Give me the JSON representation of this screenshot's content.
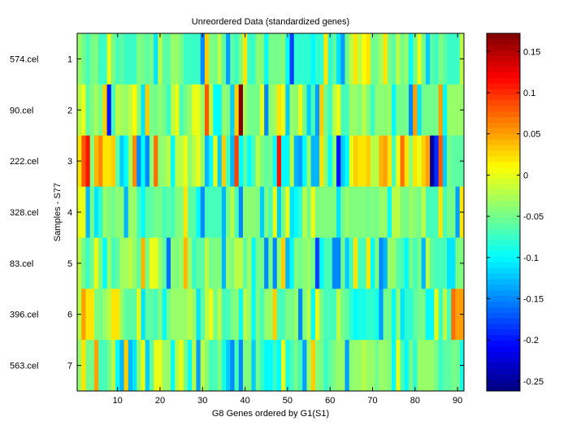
{
  "chart_data": {
    "type": "heatmap",
    "title": "Unreordered Data (standardized genes)",
    "xlabel": "G8 Genes ordered by G1(S1)",
    "ylabel": "Samples - S77",
    "n_cols": 91,
    "xlim": [
      0.5,
      91.5
    ],
    "xticks": [
      10,
      20,
      30,
      40,
      50,
      60,
      70,
      80,
      90
    ],
    "yticks": [
      "1",
      "2",
      "3",
      "4",
      "5",
      "6",
      "7"
    ],
    "row_labels": [
      "574.cel",
      "90.cel",
      "222.cel",
      "328.cel",
      "83.cel",
      "396.cel",
      "563.cel"
    ],
    "colormap": "jet",
    "clim": [
      -0.262,
      0.172
    ],
    "colorbar_ticks": [
      0.15,
      0.1,
      0.05,
      0,
      -0.05,
      -0.1,
      -0.15,
      -0.2,
      -0.25
    ],
    "colorbar_tick_labels": [
      "0.15",
      "0.1",
      "0.05",
      "0",
      "-0.05",
      "-0.1",
      "-0.15",
      "-0.2",
      "-0.25"
    ],
    "rows": [
      [
        -0.035,
        -0.05,
        -0.07,
        -0.05,
        -0.045,
        -0.075,
        -0.075,
        0.0,
        -0.05,
        -0.07,
        -0.06,
        -0.075,
        -0.075,
        -0.075,
        -0.045,
        -0.05,
        -0.06,
        -0.05,
        -0.11,
        -0.02,
        -0.06,
        -0.06,
        -0.035,
        -0.035,
        -0.05,
        -0.075,
        -0.075,
        -0.075,
        -0.075,
        -0.15,
        0.03,
        -0.045,
        -0.05,
        -0.02,
        -0.06,
        -0.14,
        -0.06,
        -0.075,
        -0.045,
        0.02,
        -0.075,
        -0.075,
        -0.04,
        -0.04,
        -0.1,
        -0.05,
        -0.05,
        -0.05,
        -0.04,
        -0.1,
        -0.18,
        -0.08,
        -0.08,
        -0.08,
        -0.08,
        -0.1,
        -0.08,
        -0.08,
        0.02,
        -0.08,
        -0.06,
        -0.11,
        -0.14,
        -0.05,
        -0.02,
        0.02,
        -0.02,
        0.01,
        0.02,
        -0.05,
        -0.05,
        -0.03,
        0.02,
        -0.05,
        -0.06,
        -0.02,
        -0.05,
        -0.035,
        -0.1,
        -0.05,
        0.0,
        -0.05,
        -0.12,
        -0.06,
        -0.075,
        -0.045,
        -0.06,
        -0.075,
        -0.075,
        -0.075,
        -0.02
      ],
      [
        -0.02,
        0.0,
        -0.06,
        -0.045,
        -0.03,
        -0.05,
        0.03,
        -0.2,
        -0.07,
        -0.02,
        -0.03,
        -0.035,
        -0.02,
        0.01,
        -0.04,
        -0.11,
        0.03,
        -0.05,
        -0.05,
        -0.04,
        -0.05,
        -0.075,
        -0.02,
        0.0,
        -0.07,
        -0.05,
        -0.035,
        0.0,
        0.0,
        -0.035,
        0.08,
        -0.02,
        -0.1,
        -0.1,
        -0.035,
        -0.045,
        -0.12,
        0.03,
        0.17,
        -0.03,
        -0.05,
        -0.05,
        -0.05,
        0.0,
        -0.15,
        -0.04,
        -0.03,
        0.02,
        0.0,
        -0.12,
        -0.035,
        -0.04,
        0.0,
        -0.05,
        -0.12,
        -0.07,
        -0.14,
        0.03,
        -0.05,
        -0.075,
        -0.02,
        0.0,
        -0.07,
        -0.07,
        -0.035,
        -0.035,
        -0.045,
        -0.02,
        -0.045,
        -0.075,
        -0.04,
        -0.04,
        -0.04,
        -0.035,
        -0.1,
        -0.05,
        -0.05,
        -0.05,
        -0.15,
        0.05,
        -0.11,
        -0.05,
        -0.05,
        -0.05,
        -0.05,
        0.05,
        -0.1,
        -0.035,
        -0.035,
        -0.035,
        -0.035
      ],
      [
        0.02,
        0.08,
        0.11,
        -0.045,
        0.04,
        0.06,
        0.02,
        0.02,
        0.03,
        -0.06,
        -0.12,
        -0.1,
        -0.03,
        0.06,
        -0.15,
        -0.1,
        -0.15,
        -0.04,
        0.07,
        -0.04,
        -0.035,
        -0.02,
        -0.1,
        -0.02,
        -0.02,
        0.0,
        -0.04,
        -0.02,
        0.0,
        -0.035,
        -0.13,
        -0.1,
        0.0,
        -0.12,
        0.03,
        -0.07,
        -0.13,
        0.09,
        -0.1,
        -0.06,
        -0.1,
        -0.07,
        -0.02,
        -0.045,
        -0.06,
        -0.05,
        -0.1,
        0.11,
        -0.1,
        -0.1,
        -0.02,
        -0.13,
        -0.14,
        -0.1,
        -0.035,
        -0.13,
        -0.13,
        0.02,
        -0.04,
        -0.1,
        -0.04,
        -0.2,
        -0.12,
        -0.1,
        0.0,
        0.03,
        0.02,
        0.02,
        0.03,
        -0.02,
        -0.02,
        0.04,
        0.05,
        0.02,
        -0.07,
        0.0,
        0.07,
        0.02,
        -0.04,
        0.02,
        0.0,
        0.03,
        0.05,
        -0.25,
        -0.19,
        0.08,
        -0.12,
        -0.05,
        -0.06,
        -0.06,
        -0.06
      ],
      [
        0.0,
        0.0,
        -0.13,
        -0.05,
        -0.11,
        -0.08,
        -0.035,
        -0.045,
        -0.05,
        -0.04,
        -0.04,
        -0.13,
        -0.035,
        -0.035,
        -0.07,
        -0.1,
        -0.06,
        -0.06,
        -0.05,
        -0.05,
        -0.07,
        -0.06,
        -0.07,
        -0.045,
        -0.045,
        0.02,
        -0.06,
        -0.06,
        -0.1,
        -0.15,
        -0.07,
        -0.07,
        -0.07,
        -0.07,
        -0.13,
        -0.05,
        -0.02,
        -0.07,
        -0.15,
        -0.04,
        -0.04,
        -0.04,
        -0.045,
        -0.12,
        -0.045,
        -0.07,
        0.0,
        -0.12,
        -0.05,
        0.0,
        -0.11,
        -0.1,
        -0.08,
        -0.02,
        -0.05,
        0.0,
        -0.045,
        -0.045,
        -0.045,
        -0.045,
        -0.045,
        -0.11,
        -0.05,
        -0.035,
        -0.045,
        -0.045,
        -0.045,
        -0.045,
        -0.05,
        -0.045,
        -0.05,
        -0.035,
        -0.035,
        -0.1,
        -0.02,
        -0.02,
        -0.045,
        -0.05,
        -0.035,
        -0.04,
        -0.05,
        -0.02,
        -0.07,
        -0.07,
        -0.07,
        0.02,
        -0.07,
        -0.05,
        -0.05,
        -0.14,
        0.02
      ],
      [
        -0.02,
        -0.05,
        -0.075,
        -0.05,
        0.0,
        -0.05,
        -0.1,
        -0.035,
        -0.07,
        -0.06,
        -0.03,
        -0.03,
        -0.02,
        -0.035,
        -0.06,
        0.04,
        -0.05,
        0.0,
        0.0,
        -0.035,
        -0.06,
        -0.16,
        -0.04,
        -0.045,
        -0.035,
        0.04,
        -0.035,
        -0.075,
        -0.06,
        -0.06,
        -0.02,
        -0.05,
        -0.045,
        -0.045,
        -0.13,
        -0.035,
        -0.045,
        -0.02,
        -0.02,
        -0.06,
        -0.03,
        -0.1,
        -0.05,
        -0.05,
        -0.15,
        -0.05,
        -0.15,
        -0.035,
        0.03,
        -0.13,
        -0.1,
        -0.045,
        -0.05,
        -0.04,
        -0.035,
        -0.05,
        -0.18,
        -0.1,
        -0.07,
        -0.07,
        -0.15,
        -0.15,
        -0.05,
        -0.12,
        -0.07,
        0.02,
        -0.07,
        -0.07,
        0.02,
        -0.1,
        -0.045,
        -0.15,
        -0.13,
        -0.035,
        -0.035,
        -0.06,
        -0.07,
        -0.1,
        -0.05,
        -0.07,
        -0.05,
        -0.13,
        -0.02,
        -0.06,
        -0.07,
        -0.07,
        -0.07,
        -0.11,
        -0.11,
        -0.045,
        -0.045
      ],
      [
        -0.02,
        0.05,
        0.02,
        0.02,
        -0.045,
        -0.05,
        -0.035,
        -0.02,
        0.02,
        0.02,
        -0.035,
        -0.06,
        -0.06,
        -0.06,
        0.0,
        -0.11,
        -0.06,
        -0.06,
        -0.07,
        -0.045,
        -0.1,
        -0.05,
        -0.035,
        -0.035,
        -0.035,
        -0.035,
        -0.02,
        -0.035,
        -0.11,
        -0.06,
        -0.02,
        0.0,
        -0.05,
        -0.02,
        -0.07,
        -0.07,
        -0.05,
        -0.04,
        -0.1,
        -0.02,
        -0.035,
        -0.1,
        -0.045,
        -0.07,
        -0.035,
        -0.035,
        0.03,
        -0.07,
        -0.07,
        -0.045,
        -0.05,
        -0.035,
        -0.15,
        -0.045,
        -0.02,
        -0.1,
        0.0,
        -0.05,
        -0.07,
        -0.07,
        -0.07,
        -0.02,
        -0.05,
        -0.06,
        -0.08,
        -0.1,
        -0.09,
        -0.09,
        -0.08,
        -0.08,
        -0.09,
        -0.14,
        -0.05,
        -0.05,
        -0.1,
        -0.035,
        -0.11,
        -0.08,
        -0.08,
        -0.06,
        -0.05,
        -0.05,
        -0.1,
        -0.1,
        0.0,
        -0.075,
        -0.02,
        -0.07,
        0.07,
        0.05,
        0.05
      ],
      [
        -0.035,
        0.02,
        -0.05,
        -0.05,
        0.05,
        -0.07,
        -0.07,
        -0.05,
        -0.02,
        -0.1,
        -0.13,
        0.03,
        -0.13,
        -0.11,
        -0.04,
        0.0,
        -0.12,
        -0.06,
        0.0,
        0.0,
        -0.035,
        -0.035,
        -0.1,
        -0.02,
        0.0,
        -0.05,
        -0.1,
        -0.02,
        -0.14,
        -0.02,
        -0.04,
        -0.07,
        -0.07,
        -0.045,
        -0.09,
        -0.12,
        -0.15,
        -0.07,
        -0.15,
        -0.045,
        -0.045,
        -0.12,
        -0.05,
        -0.075,
        -0.1,
        -0.1,
        -0.075,
        -0.1,
        0.0,
        -0.09,
        -0.07,
        -0.05,
        -0.07,
        -0.14,
        -0.035,
        0.03,
        -0.04,
        -0.05,
        -0.075,
        -0.06,
        -0.045,
        -0.035,
        -0.035,
        -0.14,
        -0.04,
        -0.035,
        -0.035,
        -0.02,
        -0.035,
        -0.035,
        -0.05,
        -0.035,
        -0.035,
        -0.045,
        -0.1,
        0.0,
        -0.07,
        -0.1,
        -0.05,
        -0.08,
        -0.035,
        -0.035,
        -0.035,
        -0.035,
        -0.05,
        -0.075,
        -0.06,
        -0.06,
        -0.05,
        -0.05,
        -0.09
      ]
    ]
  }
}
